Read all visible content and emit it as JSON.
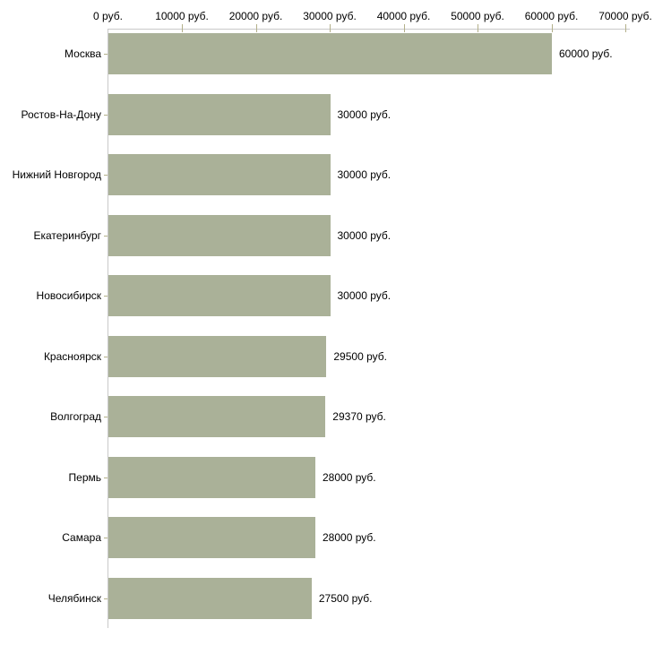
{
  "chart_data": {
    "type": "bar",
    "orientation": "horizontal",
    "title": "",
    "xlabel": "",
    "ylabel": "",
    "unit": "руб.",
    "xlim": [
      0,
      70000
    ],
    "grid": false,
    "legend": false,
    "categories": [
      "Москва",
      "Ростов-На-Дону",
      "Нижний Новгород",
      "Екатеринбург",
      "Новосибирск",
      "Красноярск",
      "Волгоград",
      "Пермь",
      "Самара",
      "Челябинск"
    ],
    "values": [
      60000,
      30000,
      30000,
      30000,
      30000,
      29500,
      29370,
      28000,
      28000,
      27500
    ],
    "value_labels": [
      "60000 руб.",
      "30000 руб.",
      "30000 руб.",
      "30000 руб.",
      "30000 руб.",
      "29500 руб.",
      "29370 руб.",
      "28000 руб.",
      "28000 руб.",
      "27500 руб."
    ],
    "x_ticks": [
      0,
      10000,
      20000,
      30000,
      40000,
      50000,
      60000,
      70000
    ],
    "x_tick_labels": [
      "0 руб.",
      "10000 руб.",
      "20000 руб.",
      "30000 руб.",
      "40000 руб.",
      "50000 руб.",
      "60000 руб.",
      "70000 руб."
    ],
    "colors": {
      "bar": "#aab198",
      "axis_line": "#c9c9c9",
      "tick_mark": "#b3b08a",
      "text": "#000000",
      "background": "#ffffff"
    }
  }
}
